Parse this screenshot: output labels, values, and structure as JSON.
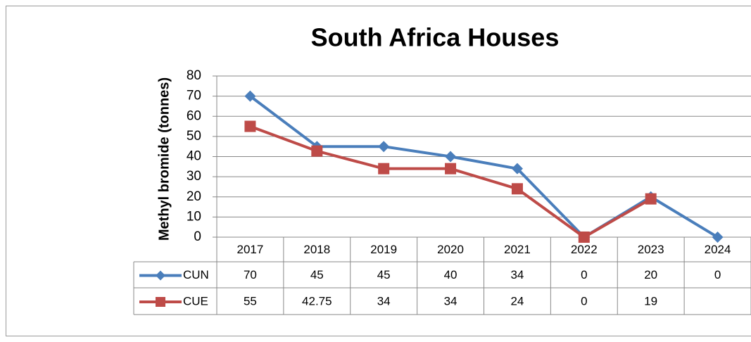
{
  "chart_data": {
    "type": "line",
    "title": "South Africa Houses",
    "ylabel": "Methyl bromide (tonnes)",
    "categories": [
      "2017",
      "2018",
      "2019",
      "2020",
      "2021",
      "2022",
      "2023",
      "2024"
    ],
    "series": [
      {
        "name": "CUN",
        "color": "#4a7ebb",
        "marker": "diamond",
        "values": [
          70,
          45,
          45,
          40,
          34,
          0,
          20,
          0
        ]
      },
      {
        "name": "CUE",
        "color": "#be4b48",
        "marker": "square",
        "values": [
          55,
          42.75,
          34,
          34,
          24,
          0,
          19,
          null
        ]
      }
    ],
    "ylim": [
      0,
      80
    ],
    "yticks": [
      0,
      10,
      20,
      30,
      40,
      50,
      60,
      70,
      80
    ],
    "grid": true,
    "data_table": true
  }
}
